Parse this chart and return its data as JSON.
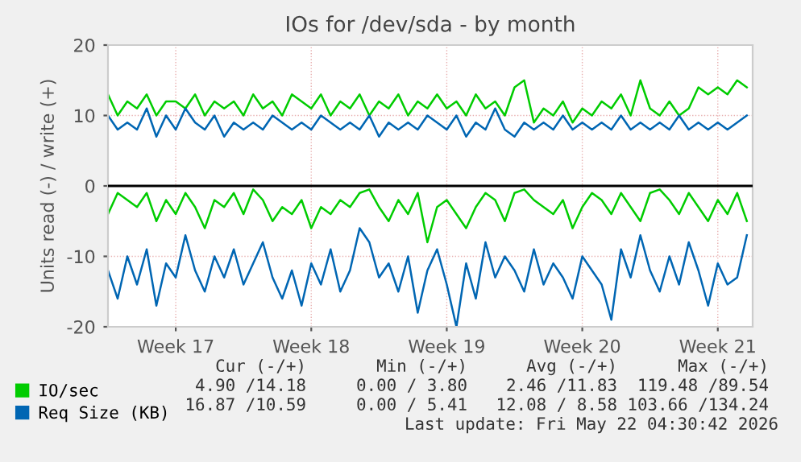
{
  "chart_data": {
    "type": "line",
    "title": "IOs for /dev/sda - by month",
    "ylabel": "Units read (-) / write (+)",
    "categories": [
      null,
      null,
      null,
      null,
      null,
      null,
      null,
      "Week 17",
      null,
      null,
      null,
      null,
      null,
      null,
      null,
      null,
      null,
      null,
      null,
      null,
      null,
      "Week 18",
      null,
      null,
      null,
      null,
      null,
      null,
      null,
      null,
      null,
      null,
      null,
      null,
      null,
      "Week 19",
      null,
      null,
      null,
      null,
      null,
      null,
      null,
      null,
      null,
      null,
      null,
      null,
      null,
      "Week 20",
      null,
      null,
      null,
      null,
      null,
      null,
      null,
      null,
      null,
      null,
      null,
      null,
      null,
      "Week 21",
      null,
      null,
      null
    ],
    "series": [
      {
        "name": "IO/sec",
        "color": "#00cc00",
        "values": [
          13,
          10,
          12,
          11,
          13,
          10,
          12,
          12,
          11,
          13,
          10,
          12,
          11,
          12,
          10,
          13,
          11,
          12,
          10,
          13,
          12,
          11,
          13,
          10,
          12,
          11,
          13,
          10,
          12,
          11,
          13,
          10,
          12,
          11,
          13,
          11,
          12,
          10,
          13,
          11,
          12,
          10,
          14,
          15,
          9,
          11,
          10,
          12,
          9,
          11,
          10,
          12,
          11,
          13,
          10,
          15,
          11,
          10,
          12,
          10,
          11,
          14,
          13,
          14,
          13,
          15,
          14
        ]
      },
      {
        "color": "#00cc00",
        "values": [
          -4,
          -1,
          -2,
          -3,
          -1,
          -5,
          -2,
          -4,
          -1,
          -3,
          -6,
          -2,
          -3,
          -1,
          -4,
          -0.5,
          -2,
          -5,
          -3,
          -4,
          -2,
          -6,
          -3,
          -4,
          -2,
          -3,
          -1,
          -0.5,
          -3,
          -5,
          -2,
          -4,
          -1,
          -8,
          -3,
          -2,
          -4,
          -6,
          -3,
          -1,
          -2,
          -5,
          -1,
          -0.5,
          -2,
          -3,
          -4,
          -2,
          -6,
          -3,
          -1,
          -2,
          -4,
          -1,
          -3,
          -5,
          -1,
          -0.5,
          -2,
          -4,
          -1,
          -3,
          -5,
          -2,
          -4,
          -1,
          -5
        ]
      },
      {
        "name": "Req Size (KB)",
        "color": "#0066b3",
        "values": [
          10,
          8,
          9,
          8,
          11,
          7,
          10,
          8,
          11,
          9,
          8,
          10,
          7,
          9,
          8,
          9,
          8,
          10,
          9,
          8,
          9,
          8,
          10,
          9,
          8,
          9,
          8,
          10,
          7,
          9,
          8,
          9,
          8,
          10,
          9,
          8,
          10,
          7,
          9,
          8,
          11,
          8,
          7,
          9,
          8,
          9,
          8,
          10,
          8,
          9,
          8,
          9,
          8,
          10,
          8,
          9,
          8,
          9,
          8,
          10,
          8,
          9,
          8,
          9,
          8,
          9,
          10
        ]
      },
      {
        "color": "#0066b3",
        "values": [
          -12,
          -16,
          -10,
          -14,
          -9,
          -17,
          -11,
          -13,
          -7,
          -12,
          -15,
          -10,
          -13,
          -9,
          -14,
          -11,
          -8,
          -13,
          -16,
          -12,
          -17,
          -11,
          -14,
          -9,
          -15,
          -12,
          -6,
          -8,
          -13,
          -11,
          -15,
          -10,
          -18,
          -12,
          -9,
          -14,
          -20,
          -11,
          -16,
          -8,
          -13,
          -10,
          -12,
          -15,
          -9,
          -14,
          -11,
          -13,
          -16,
          -10,
          -12,
          -14,
          -19,
          -9,
          -13,
          -7,
          -12,
          -15,
          -10,
          -14,
          -8,
          -12,
          -17,
          -11,
          -14,
          -13,
          -7
        ]
      }
    ],
    "ylim": [
      -20,
      20
    ],
    "yticks": [
      -20,
      -10,
      0,
      10,
      20
    ],
    "ref_lines": [
      {
        "axis": "y",
        "value": 0,
        "color": "#000000"
      }
    ],
    "grid": true,
    "legend": "bottom left",
    "marker": "none",
    "line_style": "solid",
    "annotations": [
      "Cur (-/+)",
      "Min (-/+)",
      "Avg (-/+)",
      "Max (-/+)",
      "4.90 /14.18",
      "0.00 / 3.80",
      "2.46 /11.83",
      "119.48 /89.54",
      "16.87 /10.59",
      "0.00 / 5.41",
      "12.08 / 8.58",
      "103.66 /134.24",
      "Last update: Fri May 22 04:30:42 2026"
    ]
  }
}
